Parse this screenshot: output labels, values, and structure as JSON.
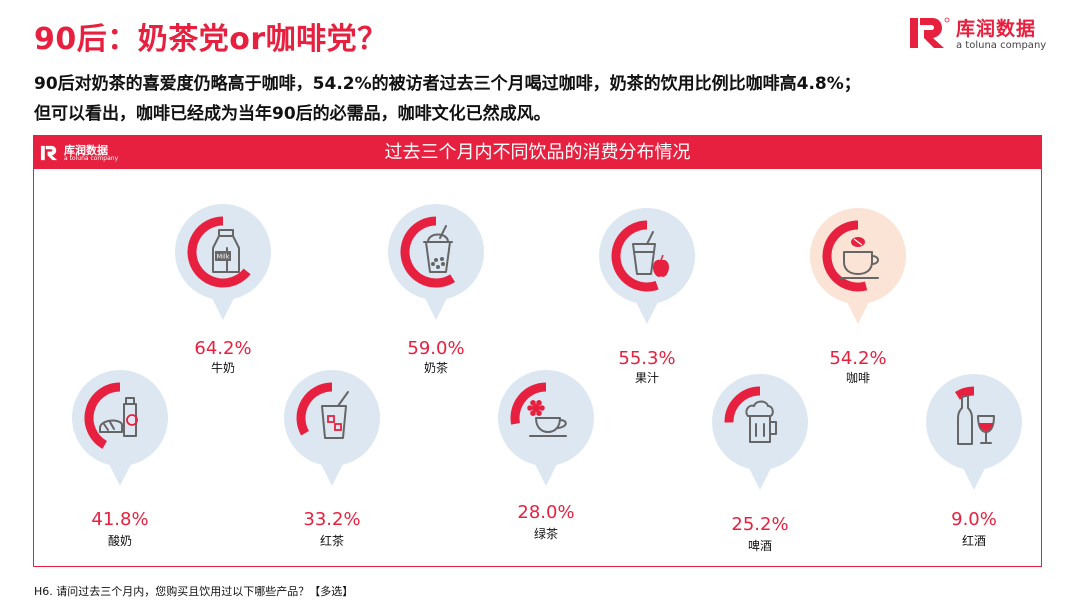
{
  "header": {
    "title": "90后：奶茶党or咖啡党？",
    "subtitle_line1": "90后对奶茶的喜爱度仍略高于咖啡，54.2%的被访者过去三个月喝过咖啡，奶茶的饮用比例比咖啡高4.8%；",
    "subtitle_line2": "但可以看出，咖啡已经成为当年90后的必需品，咖啡文化已然成风。"
  },
  "logo": {
    "cn": "库润数据",
    "en": "a toluna company"
  },
  "colors": {
    "accent": "#e8203f",
    "bubble": "#dde7f2",
    "bubble_highlight": "#fbe3d6",
    "icon_gray": "#666666"
  },
  "chart_data": {
    "type": "bubble-progress",
    "title": "过去三个月内不同饮品的消费分布情况",
    "unit": "%",
    "categories": [
      "牛奶",
      "奶茶",
      "果汁",
      "咖啡",
      "酸奶",
      "红茶",
      "绿茶",
      "啤酒",
      "红酒"
    ],
    "values": [
      64.2,
      59.0,
      55.3,
      54.2,
      41.8,
      33.2,
      28.0,
      25.2,
      9.0
    ],
    "labels": [
      "64.2%",
      "59.0%",
      "55.3%",
      "54.2%",
      "41.8%",
      "33.2%",
      "28.0%",
      "25.2%",
      "9.0%"
    ],
    "icons": [
      "milk-carton-icon",
      "bubble-tea-icon",
      "juice-apple-icon",
      "coffee-cup-icon",
      "yogurt-bread-icon",
      "iced-tea-icon",
      "green-tea-icon",
      "beer-mug-icon",
      "wine-bottle-icon"
    ],
    "highlight": "咖啡",
    "milk_label": "Milk"
  },
  "footer": {
    "note": "H6. 请问过去三个月内，您购买且饮用过以下哪些产品？【多选】"
  }
}
